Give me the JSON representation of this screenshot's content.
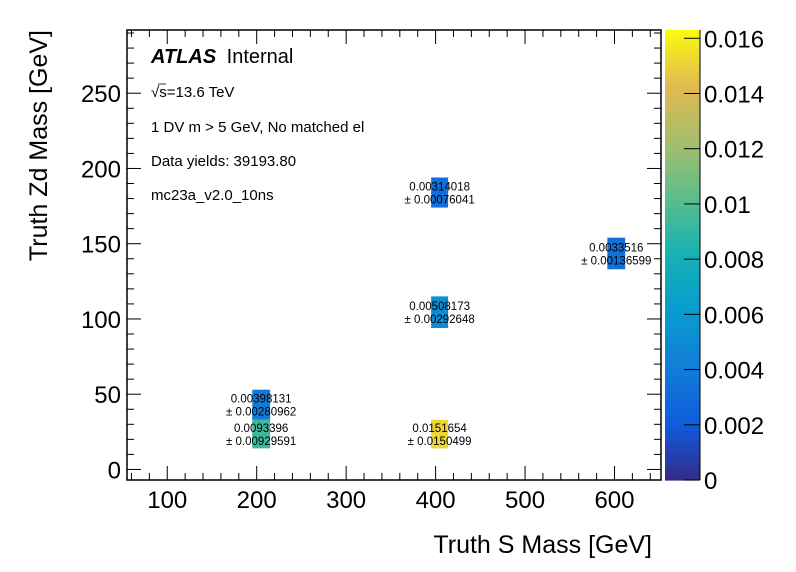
{
  "chart_data": {
    "type": "heatmap",
    "title": "",
    "xlabel": "Truth S Mass [GeV]",
    "ylabel": "Truth Zd Mass [GeV]",
    "xlim": [
      55,
      652
    ],
    "ylim": [
      -7,
      292
    ],
    "x_ticks": [
      100,
      200,
      300,
      400,
      500,
      600
    ],
    "x_tick_labels": [
      "100",
      "200",
      "300",
      "400",
      "500",
      "600"
    ],
    "y_ticks": [
      0,
      50,
      100,
      150,
      200,
      250
    ],
    "y_tick_labels": [
      "0",
      "50",
      "100",
      "150",
      "200",
      "250"
    ],
    "grid": false,
    "colorbar": {
      "range": [
        0,
        0.0163
      ],
      "ticks": [
        0,
        0.002,
        0.004,
        0.006,
        0.008,
        0.01,
        0.012,
        0.014,
        0.016
      ],
      "tick_labels": [
        "0",
        "0.002",
        "0.004",
        "0.006",
        "0.008",
        "0.01",
        "0.012",
        "0.014",
        "0.016"
      ],
      "colormap": "kBird"
    },
    "cells": [
      {
        "x_low": 195,
        "x_high": 215,
        "y_low": 33,
        "y_high": 53,
        "value": 0.00398131,
        "error": 0.00280962,
        "label": "0.00398131",
        "error_label": "± 0.00280962"
      },
      {
        "x_low": 195,
        "x_high": 215,
        "y_low": 14,
        "y_high": 33,
        "value": 0.0093396,
        "error": 0.00929591,
        "label": "0.0093396",
        "error_label": "± 0.00929591"
      },
      {
        "x_low": 395,
        "x_high": 414,
        "y_low": 174,
        "y_high": 194,
        "value": 0.00314018,
        "error": 0.00076041,
        "label": "0.00314018",
        "error_label": "± 0.00076041"
      },
      {
        "x_low": 395,
        "x_high": 414,
        "y_low": 94,
        "y_high": 115,
        "value": 0.00508173,
        "error": 0.00292648,
        "label": "0.00508173",
        "error_label": "± 0.00292648"
      },
      {
        "x_low": 395,
        "x_high": 414,
        "y_low": 14,
        "y_high": 33,
        "value": 0.0151654,
        "error": 0.0150499,
        "label": "0.0151654",
        "error_label": "± 0.0150499"
      },
      {
        "x_low": 592,
        "x_high": 612,
        "y_low": 133,
        "y_high": 154,
        "value": 0.0033516,
        "error": 0.00136599,
        "label": "0.0033516",
        "error_label": "± 0.00136599"
      }
    ],
    "annotations": {
      "atlas": "ATLAS",
      "internal": "Internal",
      "energy_sqrt": "√s",
      "energy": "=13.6 TeV",
      "selection": "1 DV m > 5 GeV, No matched el",
      "yields": "Data yields: 39193.80",
      "sample": "mc23a_v2.0_10ns"
    }
  }
}
